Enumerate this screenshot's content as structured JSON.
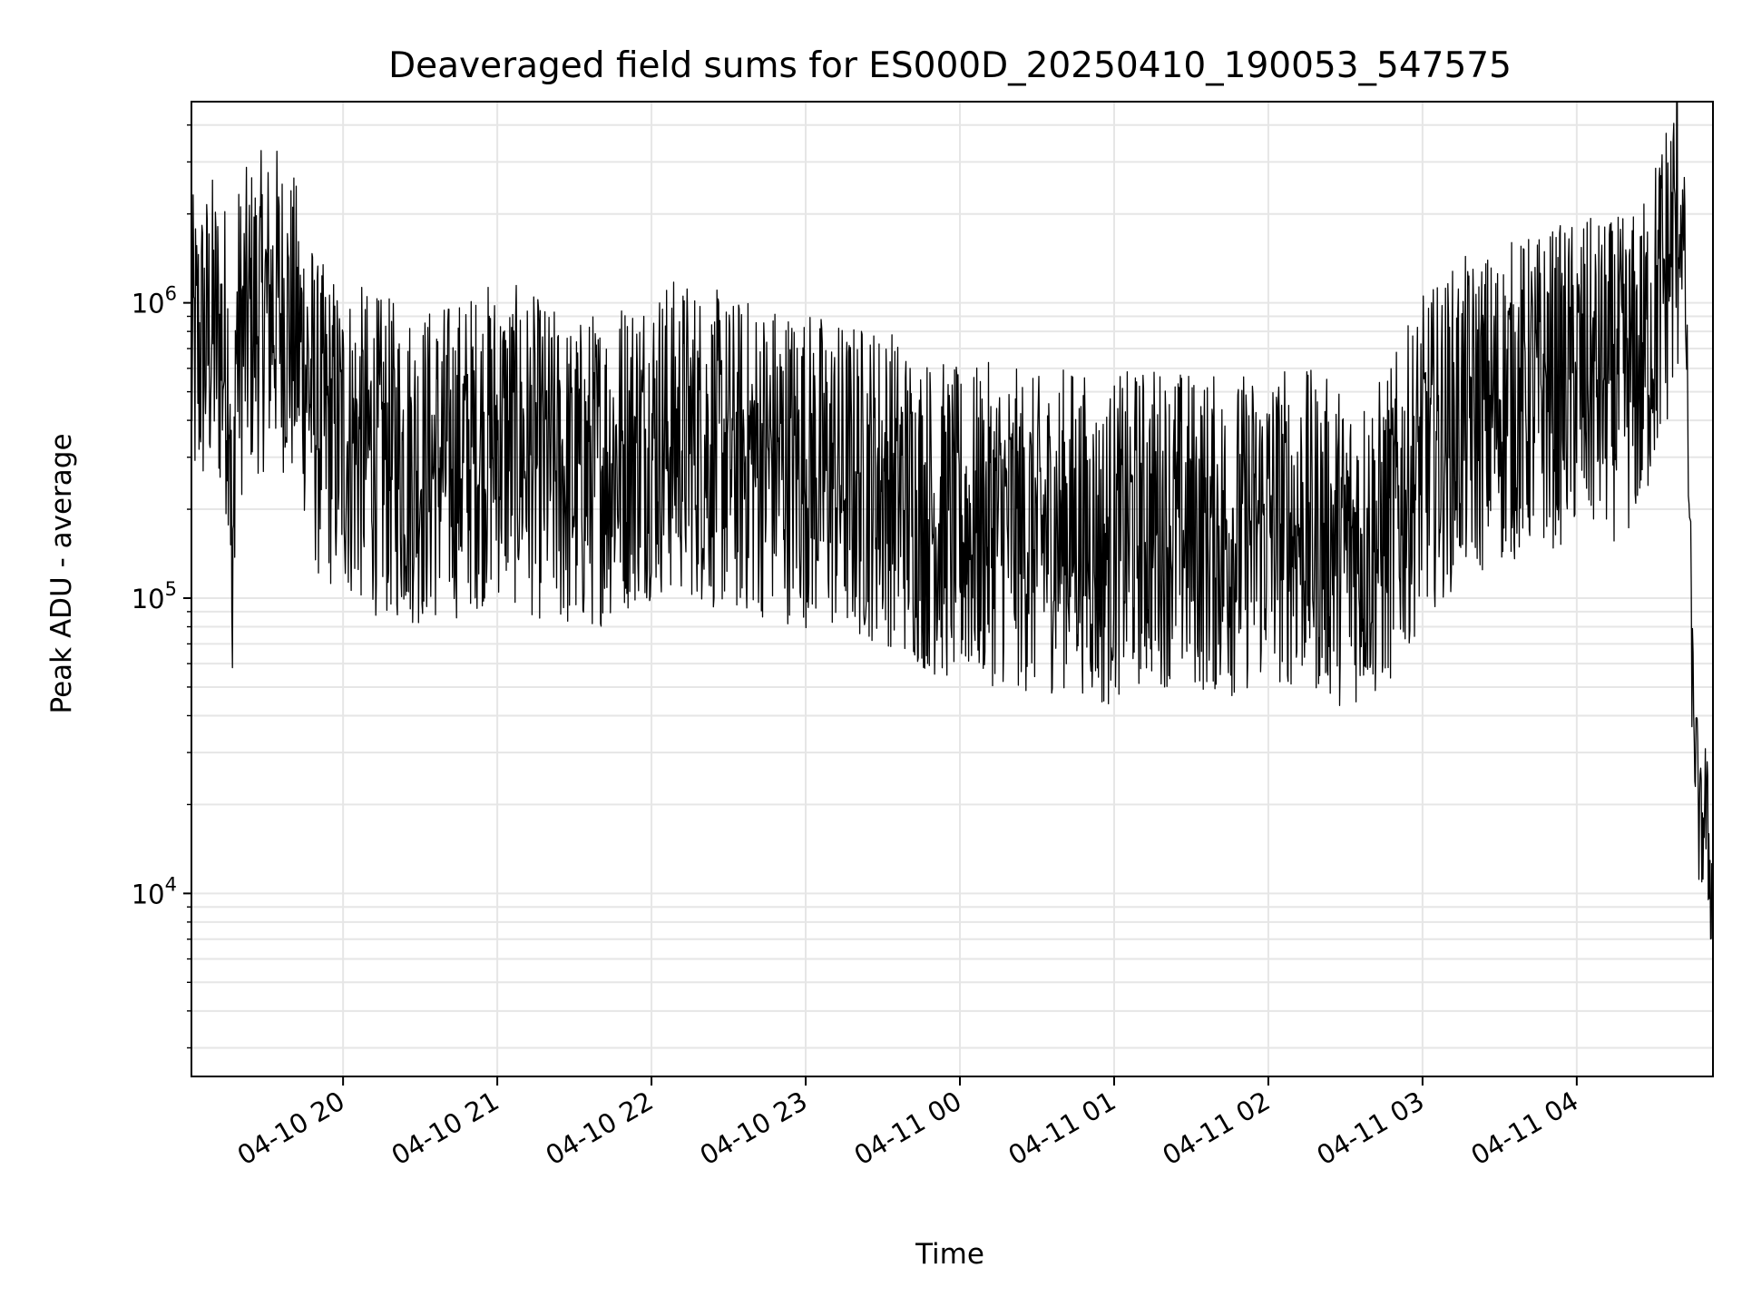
{
  "chart_data": {
    "type": "line",
    "title": "Deaveraged field sums for ES000D_20250410_190053_547575",
    "xlabel": "Time",
    "ylabel": "Peak ADU - average",
    "yscale": "log",
    "ylim": [
      2400,
      4800000
    ],
    "xlim": [
      "04-10 19:01",
      "04-11 04:53"
    ],
    "grid": true,
    "line_color": "#000000",
    "x_ticks": [
      {
        "time": "04-10 20:00",
        "label": "04-10 20"
      },
      {
        "time": "04-10 21:00",
        "label": "04-10 21"
      },
      {
        "time": "04-10 22:00",
        "label": "04-10 22"
      },
      {
        "time": "04-10 23:00",
        "label": "04-10 23"
      },
      {
        "time": "04-11 00:00",
        "label": "04-11 00"
      },
      {
        "time": "04-11 01:00",
        "label": "04-11 01"
      },
      {
        "time": "04-11 02:00",
        "label": "04-11 02"
      },
      {
        "time": "04-11 03:00",
        "label": "04-11 03"
      },
      {
        "time": "04-11 04:00",
        "label": "04-11 04"
      }
    ],
    "y_ticks": [
      {
        "value": 10000,
        "base": "10",
        "exp": "4"
      },
      {
        "value": 100000,
        "base": "10",
        "exp": "5"
      },
      {
        "value": 1000000,
        "base": "10",
        "exp": "6"
      }
    ],
    "series": [
      {
        "values_note": "",
        "x": [
          "04-10 19:01",
          "04-10 19:10",
          "04-10 19:16",
          "04-10 19:17",
          "04-10 19:18",
          "04-10 19:25",
          "04-10 19:35",
          "04-10 19:45",
          "04-10 19:50",
          "04-10 20:00",
          "04-10 20:15",
          "04-10 20:30",
          "04-10 20:45",
          "04-10 21:00",
          "04-10 21:15",
          "04-10 21:30",
          "04-10 21:45",
          "04-10 22:00",
          "04-10 22:15",
          "04-10 22:30",
          "04-10 22:45",
          "04-10 23:00",
          "04-10 23:15",
          "04-10 23:30",
          "04-10 23:45",
          "04-11 00:00",
          "04-11 00:15",
          "04-11 00:30",
          "04-11 00:45",
          "04-11 00:55",
          "04-11 01:00",
          "04-11 01:15",
          "04-11 01:30",
          "04-11 01:45",
          "04-11 02:00",
          "04-11 02:15",
          "04-11 02:30",
          "04-11 02:45",
          "04-11 03:00",
          "04-11 03:15",
          "04-11 03:30",
          "04-11 03:45",
          "04-11 04:00",
          "04-11 04:15",
          "04-11 04:25",
          "04-11 04:35",
          "04-11 04:40",
          "04-11 04:42",
          "04-11 04:45",
          "04-11 04:48",
          "04-11 04:50",
          "04-11 04:53"
        ],
        "y": [
          650000,
          800000,
          600000,
          45000,
          700000,
          900000,
          1000000,
          650000,
          400000,
          350000,
          300000,
          280000,
          300000,
          350000,
          300000,
          250000,
          300000,
          350000,
          350000,
          300000,
          300000,
          280000,
          250000,
          250000,
          200000,
          170000,
          180000,
          160000,
          180000,
          140000,
          160000,
          180000,
          170000,
          160000,
          180000,
          170000,
          150000,
          160000,
          300000,
          400000,
          450000,
          500000,
          550000,
          550000,
          600000,
          1300000,
          2000000,
          1500000,
          50000,
          15000,
          20000,
          9000
        ]
      }
    ]
  }
}
